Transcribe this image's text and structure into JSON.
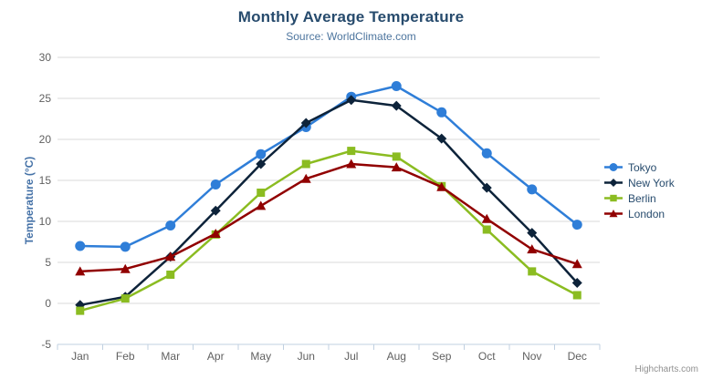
{
  "header": {
    "title": "Monthly Average Temperature",
    "subtitle": "Source: WorldClimate.com"
  },
  "toolbar": {
    "context_menu_icon": "hamburger-icon"
  },
  "credits": {
    "label": "Highcharts.com"
  },
  "colors": {
    "title": "#274b6d",
    "subtitle": "#4d759e",
    "axis_label": "#606060",
    "y_axis_title": "#4572a7",
    "gridline": "#d8d8d8",
    "axis_line": "#c0d0e0",
    "legend_text": "#274b6d",
    "credits_text": "#909090",
    "menu_icon": "#666666"
  },
  "chart_data": {
    "type": "line",
    "title": "Monthly Average Temperature",
    "subtitle": "Source: WorldClimate.com",
    "xlabel": "",
    "ylabel": "Temperature (°C)",
    "categories": [
      "Jan",
      "Feb",
      "Mar",
      "Apr",
      "May",
      "Jun",
      "Jul",
      "Aug",
      "Sep",
      "Oct",
      "Nov",
      "Dec"
    ],
    "series": [
      {
        "name": "Tokyo",
        "color": "#2f7ed8",
        "marker": "circle",
        "values": [
          7.0,
          6.9,
          9.5,
          14.5,
          18.2,
          21.5,
          25.2,
          26.5,
          23.3,
          18.3,
          13.9,
          9.6
        ]
      },
      {
        "name": "New York",
        "color": "#0d233a",
        "marker": "diamond",
        "values": [
          -0.2,
          0.8,
          5.7,
          11.3,
          17.0,
          22.0,
          24.8,
          24.1,
          20.1,
          14.1,
          8.6,
          2.5
        ]
      },
      {
        "name": "Berlin",
        "color": "#8bbc21",
        "marker": "square",
        "values": [
          -0.9,
          0.6,
          3.5,
          8.4,
          13.5,
          17.0,
          18.6,
          17.9,
          14.3,
          9.0,
          3.9,
          1.0
        ]
      },
      {
        "name": "London",
        "color": "#910000",
        "marker": "triangle",
        "values": [
          3.9,
          4.2,
          5.7,
          8.5,
          11.9,
          15.2,
          17.0,
          16.6,
          14.2,
          10.3,
          6.6,
          4.8
        ]
      }
    ],
    "ylim": [
      -5,
      30
    ],
    "yticks": [
      -5,
      0,
      5,
      10,
      15,
      20,
      25,
      30
    ],
    "grid": true,
    "legend_position": "right"
  }
}
